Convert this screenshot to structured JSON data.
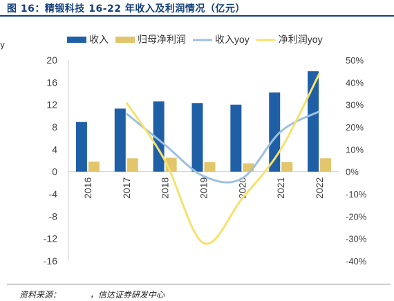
{
  "figure": {
    "title": "图 16：精锻科技 16-22 年收入及利润情况（亿元）",
    "source_label": "资料来源：",
    "source_name": "，信达证券研发中心",
    "left_edge_text": "y"
  },
  "chart_data": {
    "type": "bar",
    "categories": [
      "2016",
      "2017",
      "2018",
      "2019",
      "2020",
      "2021",
      "2022"
    ],
    "series": [
      {
        "name": "收入",
        "type": "bar",
        "axis": "left",
        "color": "#1f5fa6",
        "values": [
          8.9,
          11.3,
          12.6,
          12.3,
          12.0,
          14.2,
          18.0
        ]
      },
      {
        "name": "归母净利润",
        "type": "bar",
        "axis": "left",
        "color": "#e3c66b",
        "values": [
          1.8,
          2.4,
          2.5,
          1.7,
          1.5,
          1.7,
          2.4
        ]
      },
      {
        "name": "收入yoy",
        "type": "line",
        "axis": "right",
        "color": "#9dc0e0",
        "values": [
          null,
          26,
          12,
          -2,
          -3,
          18,
          27
        ]
      },
      {
        "name": "净利润yoy",
        "type": "line",
        "axis": "right",
        "color": "#f7e16a",
        "values": [
          null,
          31,
          5,
          -32,
          -12,
          10,
          44
        ]
      }
    ],
    "y_left": {
      "ticks": [
        "20",
        "16",
        "12",
        "8",
        "4",
        "0",
        "-4",
        "-8",
        "-12",
        "-16"
      ],
      "ylim": [
        -16,
        20
      ]
    },
    "y_right": {
      "ticks": [
        "50%",
        "40%",
        "30%",
        "20%",
        "10%",
        "0%",
        "-10%",
        "-20%",
        "-30%",
        "-40%"
      ],
      "ylim": [
        -40,
        50
      ]
    },
    "legend_position": "top",
    "grid": false
  }
}
